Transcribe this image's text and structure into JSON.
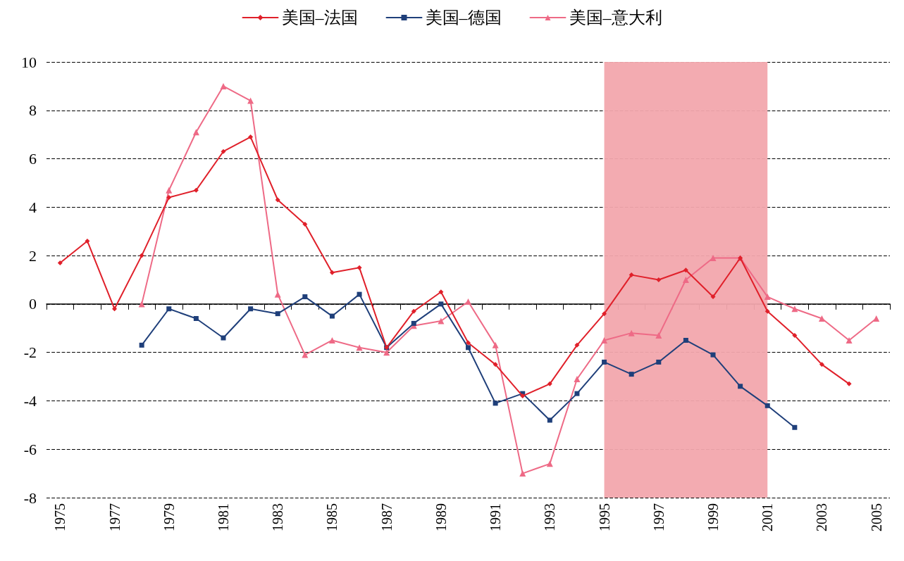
{
  "chart_data": {
    "type": "line",
    "categories": [
      "1975",
      null,
      "1977",
      null,
      "1979",
      null,
      "1981",
      null,
      "1983",
      null,
      "1985",
      null,
      "1987",
      null,
      "1989",
      null,
      "1991",
      null,
      "1993",
      null,
      "1995",
      null,
      "1997",
      null,
      "1999",
      null,
      "2001",
      null,
      "2003",
      null,
      "2005"
    ],
    "series": [
      {
        "name": "美国–法国",
        "color": "#e0202a",
        "marker": "diamond",
        "values": [
          1.7,
          2.6,
          -0.2,
          2.0,
          4.4,
          4.7,
          6.3,
          6.9,
          4.3,
          3.3,
          1.3,
          1.5,
          -1.8,
          -0.3,
          0.5,
          -1.6,
          -2.5,
          -3.8,
          -3.3,
          -1.7,
          -0.4,
          1.2,
          1.0,
          1.4,
          0.3,
          1.9,
          -0.3,
          -1.3,
          -2.5,
          -3.3,
          null
        ]
      },
      {
        "name": "美国–德国",
        "color": "#1f3f7a",
        "marker": "square",
        "values": [
          null,
          null,
          null,
          -1.7,
          -0.2,
          -0.6,
          -1.4,
          -0.2,
          -0.4,
          0.3,
          -0.5,
          0.4,
          -1.8,
          -0.8,
          0.0,
          -1.8,
          -4.1,
          -3.7,
          -4.8,
          -3.7,
          -2.4,
          -2.9,
          -2.4,
          -1.5,
          -2.1,
          -3.4,
          -4.2,
          -5.1,
          null,
          null,
          null
        ]
      },
      {
        "name": "美国–意大利",
        "color": "#ee6a86",
        "marker": "triangle",
        "values": [
          null,
          null,
          null,
          0.0,
          4.7,
          7.1,
          9.0,
          8.4,
          0.4,
          -2.1,
          -1.5,
          -1.8,
          -2.0,
          -0.9,
          -0.7,
          0.1,
          -1.7,
          -7.0,
          -6.6,
          -3.1,
          -1.5,
          -1.2,
          -1.3,
          1.0,
          1.9,
          1.9,
          0.3,
          -0.2,
          -0.6,
          -1.5,
          -0.6
        ]
      }
    ],
    "ylim": [
      -8,
      10
    ],
    "yticks": [
      -8,
      -6,
      -4,
      -2,
      0,
      2,
      4,
      6,
      8,
      10
    ],
    "grid": "y",
    "legend": "top",
    "line_style": "solid",
    "bands": [
      {
        "axis": "x",
        "from": "1995",
        "to": "2001",
        "color": "#f2a7ad"
      }
    ]
  }
}
